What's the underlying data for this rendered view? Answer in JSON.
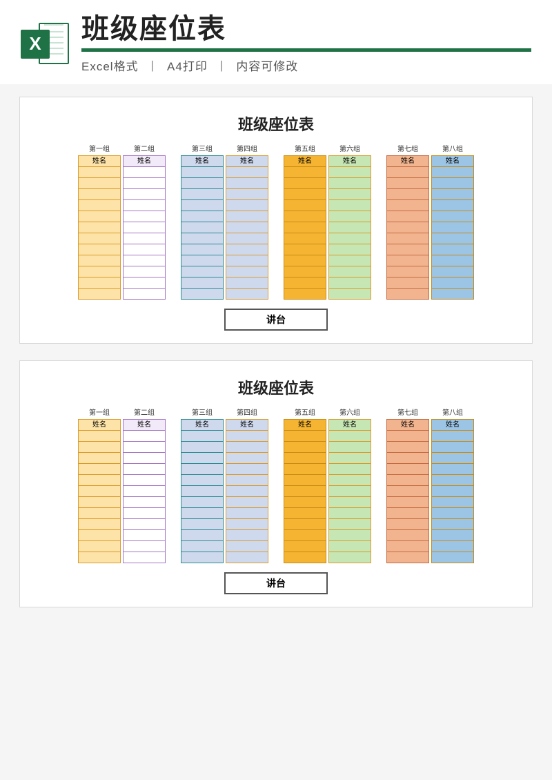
{
  "header": {
    "icon_letter": "X",
    "main_title": "班级座位表",
    "sub_parts": [
      "Excel格式",
      "A4打印",
      "内容可修改"
    ],
    "separator": "丨"
  },
  "chart": {
    "title": "班级座位表",
    "podium": "讲台",
    "seat_rows": 12,
    "name_label": "姓名",
    "label_fontsize": 10,
    "title_fontsize": 22,
    "groups": [
      {
        "label": "第一组",
        "fill": "#fde3a7",
        "border": "#d99a2b",
        "header_bg": "#fde3a7"
      },
      {
        "label": "第二组",
        "fill": "#ffffff",
        "border": "#a374c4",
        "header_bg": "#f3eaf9"
      },
      {
        "label": "第三组",
        "fill": "#cfd9ee",
        "border": "#2a8a8f",
        "header_bg": "#cfd9ee"
      },
      {
        "label": "第四组",
        "fill": "#cfd9ee",
        "border": "#d99a2b",
        "header_bg": "#cfd9ee"
      },
      {
        "label": "第五组",
        "fill": "#f5b431",
        "border": "#c98b14",
        "header_bg": "#f5b431"
      },
      {
        "label": "第六组",
        "fill": "#c6e6b3",
        "border": "#d99a2b",
        "header_bg": "#c6e6b3"
      },
      {
        "label": "第七组",
        "fill": "#f2b48f",
        "border": "#c46a3f",
        "header_bg": "#f2b48f"
      },
      {
        "label": "第八组",
        "fill": "#9cc4e4",
        "border": "#c98b14",
        "header_bg": "#9cc4e4"
      }
    ],
    "pair_gap": 22,
    "col_gap": 3
  },
  "layout": {
    "page_bg": "#f5f5f5",
    "paper_bg": "#ffffff",
    "paper_border": "#d8d8d8",
    "copies": 2
  }
}
